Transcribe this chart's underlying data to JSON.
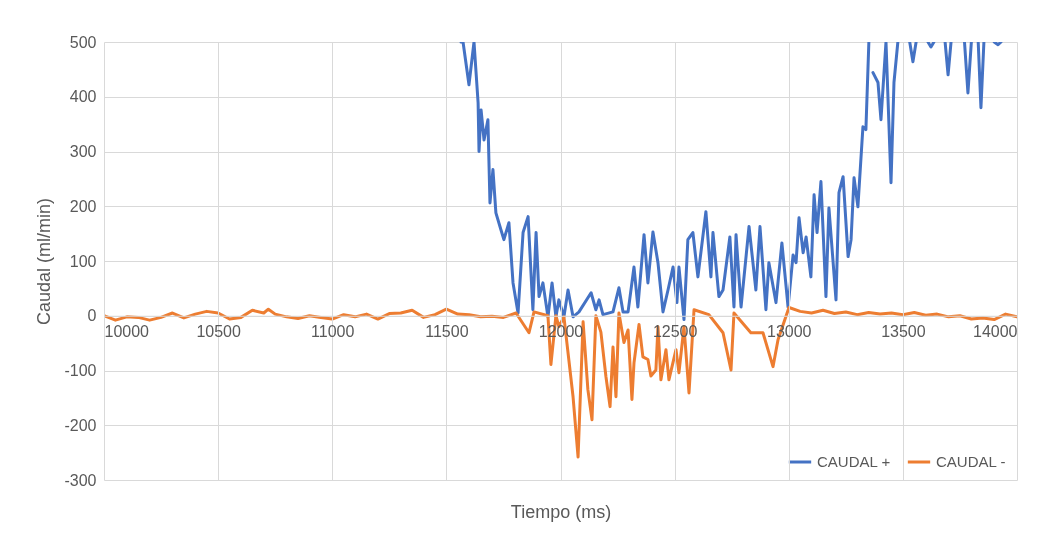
{
  "chart_data": {
    "type": "line",
    "xlabel": "Tiempo (ms)",
    "ylabel": "Caudal (ml/min)",
    "xlim": [
      10000,
      14000
    ],
    "xticks": [
      10000,
      10500,
      11000,
      11500,
      12000,
      12500,
      13000,
      13500,
      14000
    ],
    "ylim": [
      -300,
      500
    ],
    "yticks": [
      -300,
      -200,
      -100,
      0,
      100,
      200,
      300,
      400,
      500
    ],
    "grid": true,
    "legend": "bottom right",
    "marker": "none",
    "line_style": "solid",
    "series": [
      {
        "name": "CAUDAL +",
        "color": "#4472c4",
        "x": [
          11564,
          11573,
          11599,
          11621,
          11639,
          11643,
          11652,
          11665,
          11682,
          11691,
          11704,
          11717,
          11739,
          11752,
          11774,
          11792,
          11814,
          11836,
          11858,
          11879,
          11893,
          11906,
          11923,
          11945,
          11963,
          11980,
          11993,
          12015,
          12033,
          12055,
          12081,
          12134,
          12155,
          12169,
          12186,
          12230,
          12256,
          12274,
          12296,
          12322,
          12339,
          12366,
          12383,
          12405,
          12427,
          12449,
          12471,
          12493,
          12510,
          12519,
          12541,
          12558,
          12580,
          12602,
          12637,
          12659,
          12668,
          12694,
          12712,
          12742,
          12760,
          12769,
          12791,
          12826,
          12856,
          12874,
          12900,
          12913,
          12944,
          12970,
          12997,
          13019,
          13032,
          13045,
          13063,
          13076,
          13097,
          13111,
          13124,
          13141,
          13163,
          13176,
          13207,
          13220,
          13238,
          13260,
          13273,
          13286,
          13303,
          13325,
          13338,
          13351,
          13360,
          13369,
          13391,
          13404,
          13426,
          13448,
          13461,
          13478,
          13510,
          13530,
          13544,
          13558,
          13590,
          13610,
          13623,
          13636,
          13660,
          13685,
          13698,
          13711,
          13740,
          13770,
          13785,
          13800,
          13820,
          13830,
          13842,
          13855,
          13880,
          13900,
          13917,
          13930
        ],
        "values": [
          500,
          500,
          422,
          500,
          389,
          300,
          376,
          321,
          358,
          206,
          267,
          188,
          157,
          139,
          170,
          60,
          5,
          152,
          181,
          11,
          152,
          35,
          60,
          -2,
          60,
          -2,
          29,
          -2,
          47,
          -2,
          7,
          42,
          11,
          29,
          2,
          7,
          51,
          7,
          7,
          89,
          16,
          148,
          60,
          153,
          97,
          7,
          47,
          89,
          24,
          89,
          -7,
          139,
          152,
          71,
          190,
          71,
          152,
          35,
          47,
          144,
          16,
          148,
          16,
          163,
          47,
          163,
          11,
          97,
          24,
          133,
          16,
          111,
          97,
          179,
          115,
          144,
          71,
          221,
          152,
          245,
          35,
          197,
          29,
          225,
          254,
          108,
          139,
          252,
          199,
          345,
          340,
          500,
          null,
          444,
          426,
          358,
          500,
          243,
          426,
          500,
          null,
          500,
          464,
          500,
          null,
          500,
          491,
          500,
          null,
          500,
          440,
          500,
          null,
          500,
          407,
          500,
          null,
          500,
          380,
          500,
          null,
          500,
          495,
          500
        ]
      },
      {
        "name": "CAUDAL -",
        "color": "#ed7d31",
        "x": [
          10000,
          10050,
          10100,
          10150,
          10200,
          10250,
          10300,
          10350,
          10400,
          10450,
          10500,
          10550,
          10600,
          10650,
          10700,
          10720,
          10750,
          10800,
          10850,
          10900,
          10950,
          11000,
          11050,
          11100,
          11150,
          11200,
          11250,
          11300,
          11350,
          11400,
          11450,
          11500,
          11550,
          11600,
          11650,
          11700,
          11750,
          11805,
          11862,
          11884,
          11945,
          11958,
          11980,
          11993,
          12015,
          12055,
          12077,
          12099,
          12120,
          12138,
          12155,
          12177,
          12199,
          12217,
          12230,
          12243,
          12256,
          12278,
          12296,
          12313,
          12322,
          12344,
          12361,
          12383,
          12396,
          12418,
          12427,
          12440,
          12462,
          12475,
          12506,
          12519,
          12541,
          12563,
          12585,
          12650,
          12712,
          12747,
          12760,
          12834,
          12887,
          12931,
          12953,
          13001,
          13050,
          13100,
          13150,
          13200,
          13250,
          13300,
          13350,
          13400,
          13450,
          13500,
          13550,
          13600,
          13650,
          13700,
          13750,
          13800,
          13850,
          13900,
          13950,
          14000
        ],
        "values": [
          0,
          -8,
          -2,
          -3,
          -8,
          -3,
          5,
          -4,
          3,
          8,
          5,
          -6,
          -3,
          10,
          5,
          12,
          3,
          -2,
          -5,
          0,
          -3,
          -6,
          2,
          -2,
          3,
          -6,
          4,
          5,
          10,
          -3,
          2,
          12,
          3,
          2,
          -2,
          -1,
          -3,
          5,
          -31,
          7,
          0,
          -89,
          0,
          -20,
          -2,
          -148,
          -258,
          -11,
          -135,
          -190,
          0,
          -30,
          -111,
          -166,
          -57,
          -148,
          5,
          -49,
          -26,
          -153,
          -86,
          -16,
          -75,
          -80,
          -110,
          -99,
          -20,
          -117,
          -62,
          -117,
          -62,
          -104,
          -20,
          -141,
          11,
          2,
          -31,
          -99,
          5,
          -31,
          -31,
          -93,
          -44,
          15,
          8,
          5,
          10,
          4,
          7,
          2,
          6,
          3,
          5,
          2,
          6,
          1,
          3,
          -2,
          0,
          -6,
          -4,
          -7,
          3,
          -2
        ]
      }
    ]
  }
}
